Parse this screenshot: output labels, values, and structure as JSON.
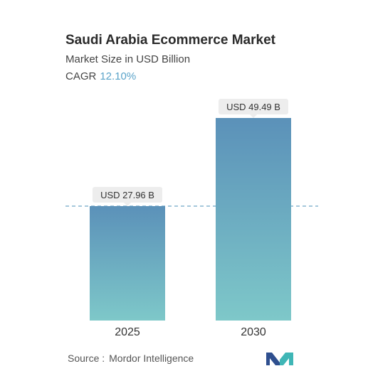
{
  "header": {
    "title": "Saudi Arabia Ecommerce Market",
    "subtitle": "Market Size in USD Billion",
    "cagr_label": "CAGR",
    "cagr_value": "12.10%"
  },
  "colors": {
    "bar_top": "#5b91b9",
    "bar_bottom": "#7ec8c9",
    "cagr": "#5aa3c9",
    "dashed_line": "#6fa7c7",
    "label_bg": "#ededed",
    "logo_dark": "#2f4f8f",
    "logo_teal": "#3fb6b6"
  },
  "chart_data": {
    "type": "bar",
    "title": "Saudi Arabia Ecommerce Market",
    "subtitle": "Market Size in USD Billion",
    "categories": [
      "2025",
      "2030"
    ],
    "values": [
      27.96,
      49.49
    ],
    "value_labels": [
      "USD 27.96 B",
      "USD 49.49 B"
    ],
    "unit": "USD Billion",
    "xlabel": "",
    "ylabel": "",
    "ylim": [
      0,
      49.49
    ],
    "grid": false,
    "reference_line": {
      "value": 27.96,
      "style": "dashed"
    }
  },
  "footer": {
    "source_label": "Source :",
    "source_name": "Mordor Intelligence",
    "logo_name": "mordor-intelligence-logo"
  }
}
